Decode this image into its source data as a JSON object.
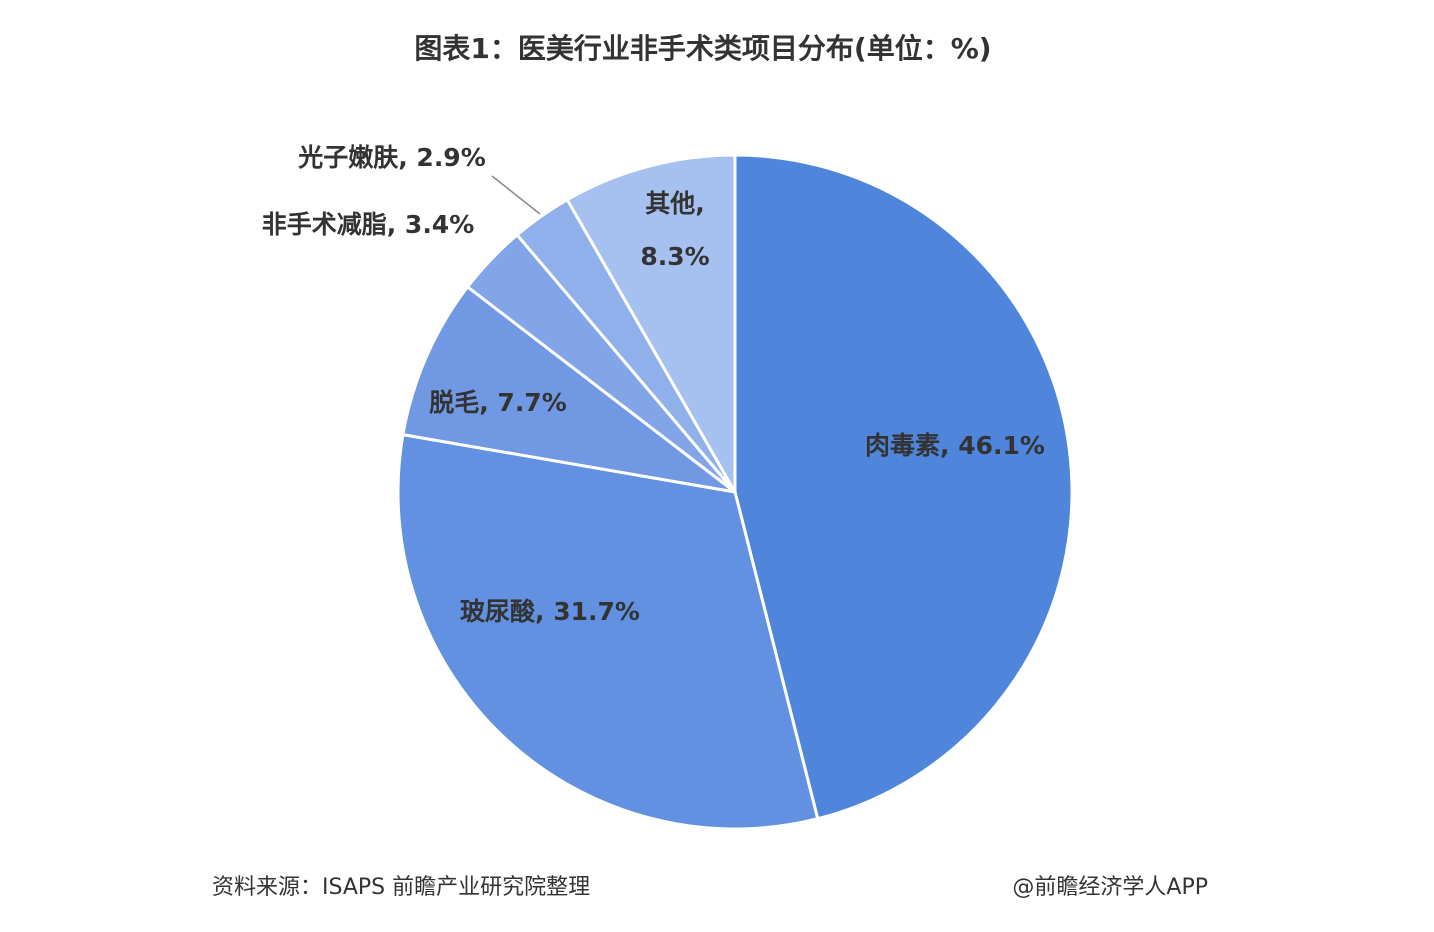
{
  "chart_data": {
    "type": "pie",
    "title": "图表1：医美行业非手术类项目分布(单位：%)",
    "labels": [
      [
        "肉毒素, 46.1%"
      ],
      [
        "玻尿酸, 31.7%"
      ],
      [
        "脱毛, 7.7%"
      ],
      [
        "非手术减脂, 3.4%"
      ],
      [
        "光子嫩肤, 2.9%"
      ],
      [
        "其他,",
        "8.3%"
      ]
    ],
    "values": [
      46.1,
      31.7,
      7.7,
      3.4,
      2.9,
      8.3
    ],
    "colors": [
      "#4f86dc",
      "#6191e0",
      "#7199e3",
      "#81a5e7",
      "#8fb0ea",
      "#a6c1f0"
    ],
    "source": "资料来源：ISAPS 前瞻产业研究院整理",
    "credit": "@前瞻经济学人APP"
  }
}
